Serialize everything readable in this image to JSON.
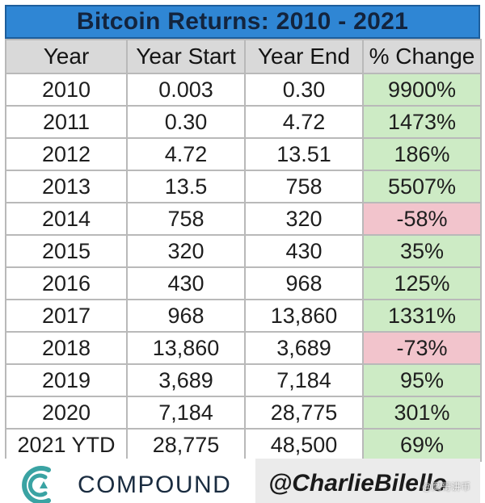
{
  "chart_data": {
    "type": "table",
    "title": "Bitcoin Returns: 2010 - 2021",
    "columns": [
      "Year",
      "Year Start",
      "Year End",
      "% Change"
    ],
    "rows": [
      {
        "year": "2010",
        "start": "0.003",
        "end": "0.30",
        "change": "9900%",
        "sign": "pos"
      },
      {
        "year": "2011",
        "start": "0.30",
        "end": "4.72",
        "change": "1473%",
        "sign": "pos"
      },
      {
        "year": "2012",
        "start": "4.72",
        "end": "13.51",
        "change": "186%",
        "sign": "pos"
      },
      {
        "year": "2013",
        "start": "13.5",
        "end": "758",
        "change": "5507%",
        "sign": "pos"
      },
      {
        "year": "2014",
        "start": "758",
        "end": "320",
        "change": "-58%",
        "sign": "neg"
      },
      {
        "year": "2015",
        "start": "320",
        "end": "430",
        "change": "35%",
        "sign": "pos"
      },
      {
        "year": "2016",
        "start": "430",
        "end": "968",
        "change": "125%",
        "sign": "pos"
      },
      {
        "year": "2017",
        "start": "968",
        "end": "13,860",
        "change": "1331%",
        "sign": "pos"
      },
      {
        "year": "2018",
        "start": "13,860",
        "end": "3,689",
        "change": "-73%",
        "sign": "neg"
      },
      {
        "year": "2019",
        "start": "3,689",
        "end": "7,184",
        "change": "95%",
        "sign": "pos"
      },
      {
        "year": "2020",
        "start": "7,184",
        "end": "28,775",
        "change": "301%",
        "sign": "pos"
      },
      {
        "year": "2021 YTD",
        "start": "28,775",
        "end": "48,500",
        "change": "69%",
        "sign": "pos"
      }
    ]
  },
  "colors": {
    "title_bg": "#2f86d4",
    "header_bg": "#d9d9d9",
    "positive_bg": "#cdebc5",
    "negative_bg": "#f2c4cc"
  },
  "footer": {
    "logo_text": "COMPOUND",
    "handle": "@CharlieBilello",
    "watermark": "@鹰哥讲币"
  }
}
